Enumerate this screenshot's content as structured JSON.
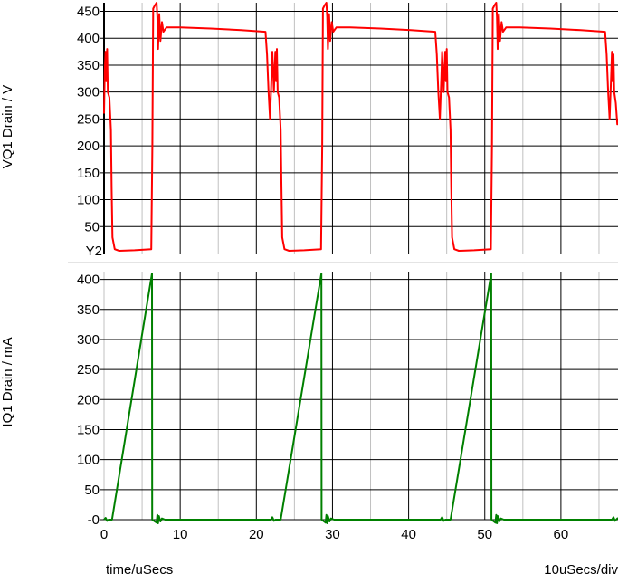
{
  "chart_data": [
    {
      "type": "line",
      "ylabel": "VQ1 Drain / V",
      "y_axis_tag": "Y2",
      "ylim": [
        0,
        466
      ],
      "xlim": [
        0,
        67.5
      ],
      "yticks": [
        50,
        100,
        150,
        200,
        250,
        300,
        350,
        400,
        450
      ],
      "grid": true,
      "series": [
        {
          "color": "#ff0000",
          "points": [
            [
              0,
              260
            ],
            [
              0.1,
              340
            ],
            [
              0.2,
              375
            ],
            [
              0.3,
              320
            ],
            [
              0.4,
              380
            ],
            [
              0.5,
              300
            ],
            [
              0.7,
              290
            ],
            [
              0.9,
              230
            ],
            [
              1.0,
              120
            ],
            [
              1.1,
              30
            ],
            [
              1.4,
              8
            ],
            [
              2,
              5
            ],
            [
              4,
              6
            ],
            [
              6.2,
              8
            ],
            [
              6.35,
              200
            ],
            [
              6.45,
              455
            ],
            [
              6.7,
              462
            ],
            [
              6.9,
              468
            ],
            [
              7.0,
              440
            ],
            [
              7.1,
              380
            ],
            [
              7.25,
              445
            ],
            [
              7.4,
              395
            ],
            [
              7.6,
              430
            ],
            [
              7.8,
              412
            ],
            [
              8.2,
              420
            ],
            [
              10,
              420
            ],
            [
              14,
              418
            ],
            [
              18,
              415
            ],
            [
              21.2,
              412
            ],
            [
              21.4,
              370
            ],
            [
              21.6,
              300
            ],
            [
              21.8,
              250
            ],
            [
              22.0,
              330
            ],
            [
              22.1,
              375
            ],
            [
              22.3,
              300
            ],
            [
              22.4,
              340
            ],
            [
              22.5,
              375
            ],
            [
              22.6,
              320
            ],
            [
              22.7,
              380
            ],
            [
              22.8,
              300
            ],
            [
              23.0,
              290
            ],
            [
              23.2,
              230
            ],
            [
              23.3,
              120
            ],
            [
              23.4,
              30
            ],
            [
              23.7,
              8
            ],
            [
              24.3,
              5
            ],
            [
              26.3,
              6
            ],
            [
              28.5,
              8
            ],
            [
              28.65,
              200
            ],
            [
              28.75,
              455
            ],
            [
              29.0,
              462
            ],
            [
              29.2,
              468
            ],
            [
              29.3,
              440
            ],
            [
              29.4,
              380
            ],
            [
              29.55,
              445
            ],
            [
              29.7,
              395
            ],
            [
              29.9,
              430
            ],
            [
              30.1,
              412
            ],
            [
              30.5,
              420
            ],
            [
              32.3,
              420
            ],
            [
              36.3,
              418
            ],
            [
              40.3,
              415
            ],
            [
              43.5,
              412
            ],
            [
              43.7,
              370
            ],
            [
              43.9,
              300
            ],
            [
              44.1,
              250
            ],
            [
              44.3,
              330
            ],
            [
              44.4,
              375
            ],
            [
              44.6,
              300
            ],
            [
              44.7,
              340
            ],
            [
              44.8,
              375
            ],
            [
              44.9,
              320
            ],
            [
              45.0,
              380
            ],
            [
              45.1,
              300
            ],
            [
              45.3,
              290
            ],
            [
              45.5,
              230
            ],
            [
              45.6,
              120
            ],
            [
              45.7,
              30
            ],
            [
              46.0,
              8
            ],
            [
              46.6,
              5
            ],
            [
              48.6,
              6
            ],
            [
              50.8,
              8
            ],
            [
              50.95,
              200
            ],
            [
              51.05,
              455
            ],
            [
              51.3,
              462
            ],
            [
              51.5,
              468
            ],
            [
              51.6,
              440
            ],
            [
              51.7,
              380
            ],
            [
              51.85,
              445
            ],
            [
              52.0,
              395
            ],
            [
              52.2,
              430
            ],
            [
              52.4,
              412
            ],
            [
              52.8,
              420
            ],
            [
              54.6,
              420
            ],
            [
              58.6,
              418
            ],
            [
              62.6,
              415
            ],
            [
              65.8,
              412
            ],
            [
              66.0,
              370
            ],
            [
              66.2,
              300
            ],
            [
              66.4,
              250
            ],
            [
              66.6,
              330
            ],
            [
              66.7,
              375
            ],
            [
              66.8,
              320
            ],
            [
              66.9,
              370
            ],
            [
              67.0,
              300
            ],
            [
              67.2,
              280
            ],
            [
              67.4,
              240
            ],
            [
              67.5,
              250
            ]
          ]
        }
      ]
    },
    {
      "type": "line",
      "ylabel": "IQ1 Drain / mA",
      "xlabel": "time/uSecs",
      "scale_label": "10uSecs/div",
      "ylim": [
        0,
        413
      ],
      "xlim": [
        0,
        67.5
      ],
      "yticks": [
        0,
        50,
        100,
        150,
        200,
        250,
        300,
        350,
        400
      ],
      "ytick_labels": [
        "-0",
        "50",
        "100",
        "150",
        "200",
        "250",
        "300",
        "350",
        "400"
      ],
      "xticks": [
        0,
        10,
        20,
        30,
        40,
        50,
        60
      ],
      "grid": true,
      "series": [
        {
          "color": "#008000",
          "points": [
            [
              0,
              0
            ],
            [
              0.2,
              3
            ],
            [
              0.4,
              -2
            ],
            [
              0.6,
              0
            ],
            [
              1.05,
              0
            ],
            [
              6.3,
              410
            ],
            [
              6.32,
              0
            ],
            [
              6.9,
              -5
            ],
            [
              7.0,
              8
            ],
            [
              7.1,
              -6
            ],
            [
              7.2,
              6
            ],
            [
              7.4,
              -3
            ],
            [
              7.6,
              2
            ],
            [
              8,
              0
            ],
            [
              21.9,
              0
            ],
            [
              22.1,
              4
            ],
            [
              22.3,
              -2
            ],
            [
              22.5,
              0
            ],
            [
              23.2,
              0
            ],
            [
              28.55,
              410
            ],
            [
              28.57,
              0
            ],
            [
              29.1,
              -5
            ],
            [
              29.2,
              8
            ],
            [
              29.3,
              -6
            ],
            [
              29.4,
              6
            ],
            [
              29.6,
              -3
            ],
            [
              29.8,
              2
            ],
            [
              30.2,
              0
            ],
            [
              44.2,
              0
            ],
            [
              44.4,
              4
            ],
            [
              44.6,
              -2
            ],
            [
              44.8,
              0
            ],
            [
              45.5,
              0
            ],
            [
              50.85,
              410
            ],
            [
              50.87,
              0
            ],
            [
              51.4,
              -5
            ],
            [
              51.5,
              8
            ],
            [
              51.6,
              -6
            ],
            [
              51.7,
              6
            ],
            [
              51.9,
              -3
            ],
            [
              52.1,
              2
            ],
            [
              52.5,
              0
            ],
            [
              66.7,
              0
            ],
            [
              66.9,
              4
            ],
            [
              67.1,
              -2
            ],
            [
              67.5,
              3
            ]
          ]
        }
      ]
    }
  ]
}
